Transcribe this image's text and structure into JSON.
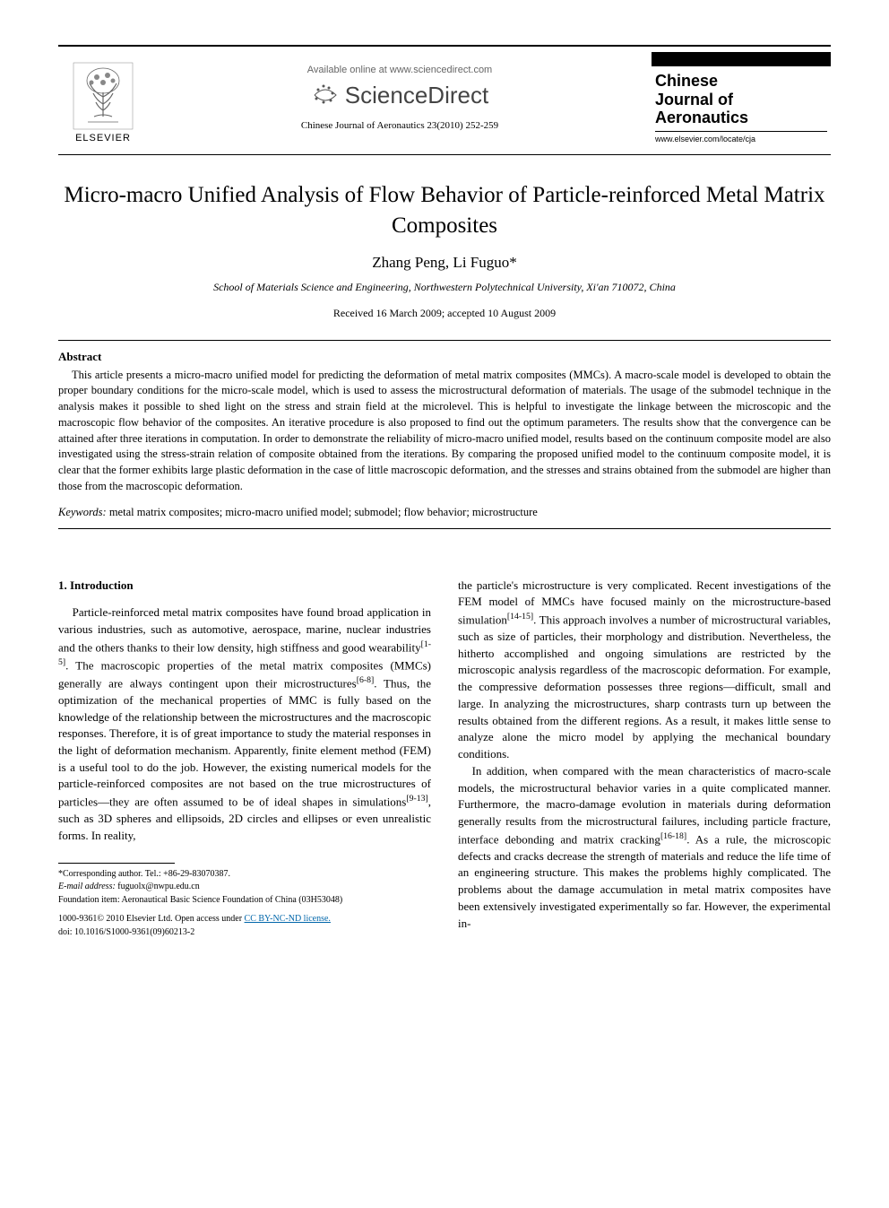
{
  "header": {
    "elsevier_label": "ELSEVIER",
    "available_online": "Available online at www.sciencedirect.com",
    "sciencedirect_label": "ScienceDirect",
    "journal_cite": "Chinese Journal of Aeronautics 23(2010) 252-259",
    "journal_name_1": "Chinese",
    "journal_name_2": "Journal of",
    "journal_name_3": "Aeronautics",
    "journal_url": "www.elsevier.com/locate/cja",
    "colors": {
      "top_bar": "#000000",
      "rule": "#000000",
      "sd_text": "#444444",
      "avail_text": "#666666"
    }
  },
  "title": "Micro-macro Unified Analysis of Flow Behavior of Particle-reinforced Metal Matrix Composites",
  "authors": "Zhang Peng, Li Fuguo*",
  "affiliation": "School of Materials Science and Engineering, Northwestern Polytechnical University, Xi'an 710072, China",
  "dates": "Received 16 March 2009; accepted 10 August 2009",
  "abstract": {
    "heading": "Abstract",
    "text": "This article presents a micro-macro unified model for predicting the deformation of metal matrix composites (MMCs). A macro-scale model is developed to obtain the proper boundary conditions for the micro-scale model, which is used to assess the microstructural deformation of materials. The usage of the submodel technique in the analysis makes it possible to shed light on the stress and strain field at the microlevel. This is helpful to investigate the linkage between the microscopic and the macroscopic flow behavior of the composites. An iterative procedure is also proposed to find out the optimum parameters. The results show that the convergence can be attained after three iterations in computation. In order to demonstrate the reliability of micro-macro unified model, results based on the continuum composite model are also investigated using the stress-strain relation of composite obtained from the iterations. By comparing the proposed unified model to the continuum composite model, it is clear that the former exhibits large plastic deformation in the case of little macroscopic deformation, and the stresses and strains obtained from the submodel are higher than those from the macroscopic deformation."
  },
  "keywords": {
    "label": "Keywords:",
    "text": " metal matrix composites; micro-macro unified model; submodel; flow behavior; microstructure"
  },
  "body": {
    "section_heading": "1. Introduction",
    "col1_p1": "Particle-reinforced metal matrix composites have found broad application in various industries, such as automotive, aerospace, marine, nuclear industries and the others thanks to their low density, high stiffness and good wearability[1-5]. The macroscopic properties of the metal matrix composites (MMCs) generally are always contingent upon their microstructures[6-8]. Thus, the optimization of the mechanical properties of MMC is fully based on the knowledge of the relationship between the microstructures and the macroscopic responses. Therefore, it is of great importance to study the material responses in the light of deformation mechanism. Apparently, finite element method (FEM) is a useful tool to do the job. However, the existing numerical models for the particle-reinforced composites are not based on the true microstructures of particles—they are often assumed to be of ideal shapes in simulations[9-13], such as 3D spheres and ellipsoids, 2D circles and ellipses or even unrealistic forms. In reality,",
    "col2_p1": "the particle's microstructure is very complicated. Recent investigations of the FEM model of MMCs have focused mainly on the microstructure-based simulation[14-15]. This approach involves a number of microstructural variables, such as size of particles, their morphology and distribution. Nevertheless, the hitherto accomplished and ongoing simulations are restricted by the microscopic analysis regardless of the macroscopic deformation. For example, the compressive deformation possesses three regions—difficult, small and large. In analyzing the microstructures, sharp contrasts turn up between the results obtained from the different regions. As a result, it makes little sense to analyze alone the micro model by applying the mechanical boundary conditions.",
    "col2_p2": "In addition, when compared with the mean characteristics of macro-scale models, the microstructural behavior varies in a quite complicated manner. Furthermore, the macro-damage evolution in materials during deformation generally results from the microstructural failures, including particle fracture, interface debonding and matrix cracking[16-18]. As a rule, the microscopic defects and cracks decrease the strength of materials and reduce the life time of an engineering structure. This makes the problems highly complicated. The problems about the damage accumulation in metal matrix composites have been extensively investigated experimentally so far. However, the experimental in-"
  },
  "footnotes": {
    "corresponding": "*Corresponding author. Tel.: +86-29-83070387.",
    "email_label": "E-mail address:",
    "email": " fuguolx@nwpu.edu.cn",
    "foundation": "Foundation item: Aeronautical Basic Science Foundation of China (03H53048)",
    "copyright": "1000-9361© 2010 Elsevier Ltd.",
    "license_prefix": " Open access under ",
    "license_link": "CC BY-NC-ND license.",
    "doi": "doi: 10.1016/S1000-9361(09)60213-2"
  }
}
